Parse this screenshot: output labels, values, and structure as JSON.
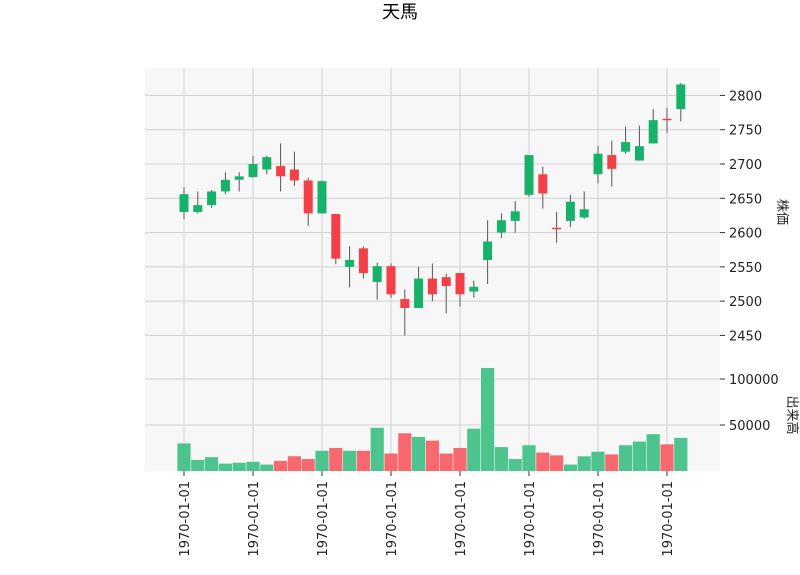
{
  "chart_data": {
    "type": "candlestick",
    "title": "天馬",
    "price_panel": {
      "ylabel": "株価",
      "ylim": [
        2420,
        2840
      ],
      "yticks": [
        2450,
        2500,
        2550,
        2600,
        2650,
        2700,
        2750,
        2800
      ],
      "ytick_labels": [
        "2450",
        "2500",
        "2550",
        "2600",
        "2650",
        "2700",
        "2750",
        "2800"
      ],
      "grid": true
    },
    "volume_panel": {
      "ylabel": "出来高",
      "ylim": [
        0,
        125000
      ],
      "yticks": [
        50000,
        100000
      ],
      "ytick_labels": [
        "50000",
        "100000"
      ],
      "grid": true
    },
    "x_tick_index": [
      0,
      5,
      10,
      15,
      20,
      25,
      30,
      35
    ],
    "x_tick_labels": [
      "1970-01-01",
      "1970-01-01",
      "1970-01-01",
      "1970-01-01",
      "1970-01-01",
      "1970-01-01",
      "1970-01-01",
      "1970-01-01"
    ],
    "up_color": "#16b26a",
    "down_color": "#f43f46",
    "up_volume_color": "#4dc48e",
    "down_volume_color": "#f7696e",
    "candles": [
      {
        "open": 2630,
        "high": 2666,
        "low": 2620,
        "close": 2656,
        "volume": 30000
      },
      {
        "open": 2630,
        "high": 2660,
        "low": 2628,
        "close": 2640,
        "volume": 12000
      },
      {
        "open": 2640,
        "high": 2662,
        "low": 2636,
        "close": 2660,
        "volume": 15000
      },
      {
        "open": 2660,
        "high": 2688,
        "low": 2656,
        "close": 2677,
        "volume": 8000
      },
      {
        "open": 2677,
        "high": 2688,
        "low": 2660,
        "close": 2682,
        "volume": 9000
      },
      {
        "open": 2681,
        "high": 2712,
        "low": 2680,
        "close": 2700,
        "volume": 10000
      },
      {
        "open": 2692,
        "high": 2712,
        "low": 2685,
        "close": 2710,
        "volume": 7000
      },
      {
        "open": 2697,
        "high": 2730,
        "low": 2660,
        "close": 2682,
        "volume": 11000
      },
      {
        "open": 2692,
        "high": 2718,
        "low": 2668,
        "close": 2676,
        "volume": 16000
      },
      {
        "open": 2676,
        "high": 2680,
        "low": 2610,
        "close": 2628,
        "volume": 13000
      },
      {
        "open": 2628,
        "high": 2676,
        "low": 2628,
        "close": 2675,
        "volume": 22000
      },
      {
        "open": 2627,
        "high": 2627,
        "low": 2554,
        "close": 2562,
        "volume": 25000
      },
      {
        "open": 2550,
        "high": 2580,
        "low": 2520,
        "close": 2560,
        "volume": 22000
      },
      {
        "open": 2577,
        "high": 2580,
        "low": 2533,
        "close": 2541,
        "volume": 22000
      },
      {
        "open": 2528,
        "high": 2556,
        "low": 2502,
        "close": 2551,
        "volume": 47000
      },
      {
        "open": 2551,
        "high": 2555,
        "low": 2505,
        "close": 2510,
        "volume": 19000
      },
      {
        "open": 2503,
        "high": 2517,
        "low": 2450,
        "close": 2490,
        "volume": 41000
      },
      {
        "open": 2490,
        "high": 2550,
        "low": 2490,
        "close": 2533,
        "volume": 37000
      },
      {
        "open": 2533,
        "high": 2555,
        "low": 2500,
        "close": 2510,
        "volume": 33000
      },
      {
        "open": 2535,
        "high": 2540,
        "low": 2482,
        "close": 2522,
        "volume": 19000
      },
      {
        "open": 2541,
        "high": 2541,
        "low": 2492,
        "close": 2510,
        "volume": 25000
      },
      {
        "open": 2514,
        "high": 2530,
        "low": 2505,
        "close": 2521,
        "volume": 46000
      },
      {
        "open": 2560,
        "high": 2618,
        "low": 2525,
        "close": 2587,
        "volume": 112000
      },
      {
        "open": 2600,
        "high": 2628,
        "low": 2592,
        "close": 2618,
        "volume": 26000
      },
      {
        "open": 2617,
        "high": 2646,
        "low": 2600,
        "close": 2631,
        "volume": 13000
      },
      {
        "open": 2655,
        "high": 2713,
        "low": 2652,
        "close": 2713,
        "volume": 28000
      },
      {
        "open": 2685,
        "high": 2696,
        "low": 2635,
        "close": 2657,
        "volume": 20000
      },
      {
        "open": 2607,
        "high": 2630,
        "low": 2585,
        "close": 2605,
        "volume": 17000
      },
      {
        "open": 2617,
        "high": 2655,
        "low": 2608,
        "close": 2645,
        "volume": 7000
      },
      {
        "open": 2622,
        "high": 2660,
        "low": 2620,
        "close": 2634,
        "volume": 16000
      },
      {
        "open": 2685,
        "high": 2726,
        "low": 2672,
        "close": 2715,
        "volume": 21000
      },
      {
        "open": 2713,
        "high": 2734,
        "low": 2667,
        "close": 2693,
        "volume": 18000
      },
      {
        "open": 2718,
        "high": 2754,
        "low": 2715,
        "close": 2732,
        "volume": 28000
      },
      {
        "open": 2705,
        "high": 2756,
        "low": 2705,
        "close": 2726,
        "volume": 32000
      },
      {
        "open": 2730,
        "high": 2780,
        "low": 2730,
        "close": 2764,
        "volume": 40000
      },
      {
        "open": 2766,
        "high": 2782,
        "low": 2745,
        "close": 2764,
        "volume": 29000
      },
      {
        "open": 2780,
        "high": 2818,
        "low": 2762,
        "close": 2816,
        "volume": 36000
      }
    ]
  }
}
